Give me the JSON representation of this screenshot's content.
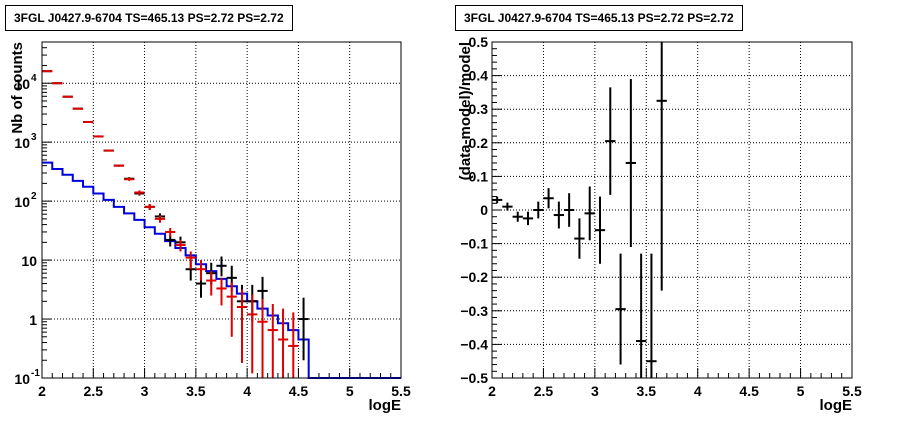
{
  "chart_data": [
    {
      "type": "histogram-errorbar",
      "title": "3FGL J0427.9-6704 TS=465.13 PS=2.72 PS=2.72",
      "xlabel": "logE",
      "ylabel": "Nb of counts",
      "yscale": "log",
      "xlim": [
        2,
        5.5
      ],
      "ylim": [
        0.1,
        50000
      ],
      "grid": true,
      "x_ticks": [
        "2",
        "2.5",
        "3",
        "3.5",
        "4",
        "4.5",
        "5",
        "5.5"
      ],
      "y_ticks": [
        {
          "v": 0.1,
          "base": "10",
          "exp": "-1"
        },
        {
          "v": 1,
          "base": "1",
          "exp": ""
        },
        {
          "v": 10,
          "base": "10",
          "exp": ""
        },
        {
          "v": 100,
          "base": "10",
          "exp": "2"
        },
        {
          "v": 1000,
          "base": "10",
          "exp": "3"
        },
        {
          "v": 10000,
          "base": "10",
          "exp": "4"
        }
      ],
      "data_series": {
        "color": "#000000",
        "points": [
          {
            "x": 2.05,
            "y": 16000,
            "lo": 15700,
            "hi": 16300
          },
          {
            "x": 2.15,
            "y": 10000,
            "lo": 9800,
            "hi": 10200
          },
          {
            "x": 2.25,
            "y": 5900,
            "lo": 5800,
            "hi": 6000
          },
          {
            "x": 2.35,
            "y": 3700,
            "lo": 3620,
            "hi": 3780
          },
          {
            "x": 2.45,
            "y": 2200,
            "lo": 2150,
            "hi": 2250
          },
          {
            "x": 2.55,
            "y": 1250,
            "lo": 1200,
            "hi": 1300
          },
          {
            "x": 2.65,
            "y": 720,
            "lo": 695,
            "hi": 745
          },
          {
            "x": 2.75,
            "y": 400,
            "lo": 385,
            "hi": 415
          },
          {
            "x": 2.85,
            "y": 240,
            "lo": 225,
            "hi": 255
          },
          {
            "x": 2.95,
            "y": 135,
            "lo": 124,
            "hi": 146
          },
          {
            "x": 3.05,
            "y": 80,
            "lo": 71,
            "hi": 89
          },
          {
            "x": 3.15,
            "y": 55,
            "lo": 48,
            "hi": 62
          },
          {
            "x": 3.25,
            "y": 22,
            "lo": 17,
            "hi": 27
          },
          {
            "x": 3.35,
            "y": 20,
            "lo": 15,
            "hi": 25
          },
          {
            "x": 3.45,
            "y": 7,
            "lo": 4.5,
            "hi": 10
          },
          {
            "x": 3.55,
            "y": 4,
            "lo": 2.3,
            "hi": 6.5
          },
          {
            "x": 3.65,
            "y": 6,
            "lo": 3.8,
            "hi": 9
          },
          {
            "x": 3.75,
            "y": 8,
            "lo": 5.3,
            "hi": 11.5
          },
          {
            "x": 3.85,
            "y": 5,
            "lo": 3,
            "hi": 8
          },
          {
            "x": 3.95,
            "y": 2,
            "lo": 0.9,
            "hi": 3.8
          },
          {
            "x": 4.05,
            "y": 2,
            "lo": 0.9,
            "hi": 3.8
          },
          {
            "x": 4.15,
            "y": 3,
            "lo": 1.5,
            "hi": 5.2
          },
          {
            "x": 4.55,
            "y": 1,
            "lo": 0.2,
            "hi": 2.3
          }
        ]
      },
      "model_series": {
        "color": "#dd0000",
        "points": [
          {
            "x": 2.05,
            "y": 16000,
            "lo": 15700,
            "hi": 16300
          },
          {
            "x": 2.15,
            "y": 10000,
            "lo": 9800,
            "hi": 10200
          },
          {
            "x": 2.25,
            "y": 5900,
            "lo": 5800,
            "hi": 6000
          },
          {
            "x": 2.35,
            "y": 3700,
            "lo": 3620,
            "hi": 3780
          },
          {
            "x": 2.45,
            "y": 2200,
            "lo": 2150,
            "hi": 2250
          },
          {
            "x": 2.55,
            "y": 1250,
            "lo": 1200,
            "hi": 1300
          },
          {
            "x": 2.65,
            "y": 720,
            "lo": 695,
            "hi": 745
          },
          {
            "x": 2.75,
            "y": 400,
            "lo": 385,
            "hi": 415
          },
          {
            "x": 2.85,
            "y": 235,
            "lo": 220,
            "hi": 250
          },
          {
            "x": 2.95,
            "y": 140,
            "lo": 128,
            "hi": 152
          },
          {
            "x": 3.05,
            "y": 80,
            "lo": 71,
            "hi": 89
          },
          {
            "x": 3.15,
            "y": 50,
            "lo": 43,
            "hi": 57
          },
          {
            "x": 3.25,
            "y": 30,
            "lo": 25,
            "hi": 35
          },
          {
            "x": 3.35,
            "y": 18,
            "lo": 14,
            "hi": 22
          },
          {
            "x": 3.45,
            "y": 11,
            "lo": 7,
            "hi": 14
          },
          {
            "x": 3.55,
            "y": 7,
            "lo": 4.5,
            "hi": 10
          },
          {
            "x": 3.65,
            "y": 4.5,
            "lo": 2.5,
            "hi": 6.5
          },
          {
            "x": 3.75,
            "y": 3.3,
            "lo": 1.7,
            "hi": 5
          },
          {
            "x": 3.85,
            "y": 2.4,
            "lo": 0.5,
            "hi": 4.2
          },
          {
            "x": 3.95,
            "y": 1.6,
            "lo": 0.18,
            "hi": 3.2
          },
          {
            "x": 4.05,
            "y": 1.2,
            "lo": 0.12,
            "hi": 2.6
          },
          {
            "x": 4.15,
            "y": 0.9,
            "lo": 0.1,
            "hi": 2.2
          },
          {
            "x": 4.25,
            "y": 0.65,
            "lo": 0.1,
            "hi": 1.8
          },
          {
            "x": 4.35,
            "y": 0.45,
            "lo": 0.1,
            "hi": 1.5
          },
          {
            "x": 4.45,
            "y": 0.35,
            "lo": 0.1,
            "hi": 1.3
          }
        ]
      },
      "step_series": {
        "color": "#0000dd",
        "bin_edges": [
          2.0,
          2.1,
          2.2,
          2.3,
          2.4,
          2.5,
          2.6,
          2.7,
          2.8,
          2.9,
          3.0,
          3.1,
          3.2,
          3.3,
          3.4,
          3.5,
          3.6,
          3.7,
          3.8,
          3.9,
          4.0,
          4.1,
          4.2,
          4.3,
          4.4,
          4.5,
          4.6,
          4.7,
          4.8,
          4.9,
          5.0,
          5.1,
          5.2,
          5.3,
          5.4,
          5.5
        ],
        "values": [
          450,
          350,
          280,
          220,
          175,
          135,
          105,
          80,
          62,
          48,
          36,
          28,
          21,
          16,
          12,
          8.5,
          6.5,
          4.8,
          3.6,
          2.7,
          2.0,
          1.5,
          1.15,
          0.85,
          0.65,
          0.45,
          0.1,
          0.1,
          0.1,
          0.1,
          0.1,
          0.1,
          0.1,
          0.1,
          0.1
        ]
      }
    },
    {
      "type": "errorbar",
      "title": "3FGL J0427.9-6704 TS=465.13 PS=2.72 PS=2.72",
      "xlabel": "logE",
      "ylabel": "(data-model)/model",
      "xlim": [
        2,
        5.5
      ],
      "ylim": [
        -0.5,
        0.5
      ],
      "grid": true,
      "x_ticks": [
        "2",
        "2.5",
        "3",
        "3.5",
        "4",
        "4.5",
        "5",
        "5.5"
      ],
      "y_ticks": [
        "−0.5",
        "−0.4",
        "−0.3",
        "−0.2",
        "−0.1",
        "0",
        "0.1",
        "0.2",
        "0.3",
        "0.4",
        "0.5"
      ],
      "y_tick_values": [
        -0.5,
        -0.4,
        -0.3,
        -0.2,
        -0.1,
        0,
        0.1,
        0.2,
        0.3,
        0.4,
        0.5
      ],
      "points": [
        {
          "x": 2.05,
          "y": 0.03,
          "err": 0.01
        },
        {
          "x": 2.15,
          "y": 0.01,
          "err": 0.012
        },
        {
          "x": 2.25,
          "y": -0.02,
          "err": 0.015
        },
        {
          "x": 2.35,
          "y": -0.025,
          "err": 0.02
        },
        {
          "x": 2.45,
          "y": 0.0,
          "err": 0.025
        },
        {
          "x": 2.55,
          "y": 0.035,
          "err": 0.03
        },
        {
          "x": 2.65,
          "y": -0.015,
          "err": 0.04
        },
        {
          "x": 2.75,
          "y": 0.0,
          "err": 0.05
        },
        {
          "x": 2.85,
          "y": -0.085,
          "err": 0.06
        },
        {
          "x": 2.95,
          "y": -0.01,
          "err": 0.08
        },
        {
          "x": 3.05,
          "y": -0.06,
          "err": 0.1
        },
        {
          "x": 3.15,
          "y": 0.205,
          "err": 0.16
        },
        {
          "x": 3.25,
          "y": -0.295,
          "err": 0.165
        },
        {
          "x": 3.35,
          "y": 0.14,
          "err": 0.25
        },
        {
          "x": 3.45,
          "y": -0.39,
          "err": 0.26
        },
        {
          "x": 3.55,
          "y": -0.45,
          "err": 0.32
        },
        {
          "x": 3.65,
          "y": 0.325,
          "err": 0.565
        }
      ]
    }
  ]
}
